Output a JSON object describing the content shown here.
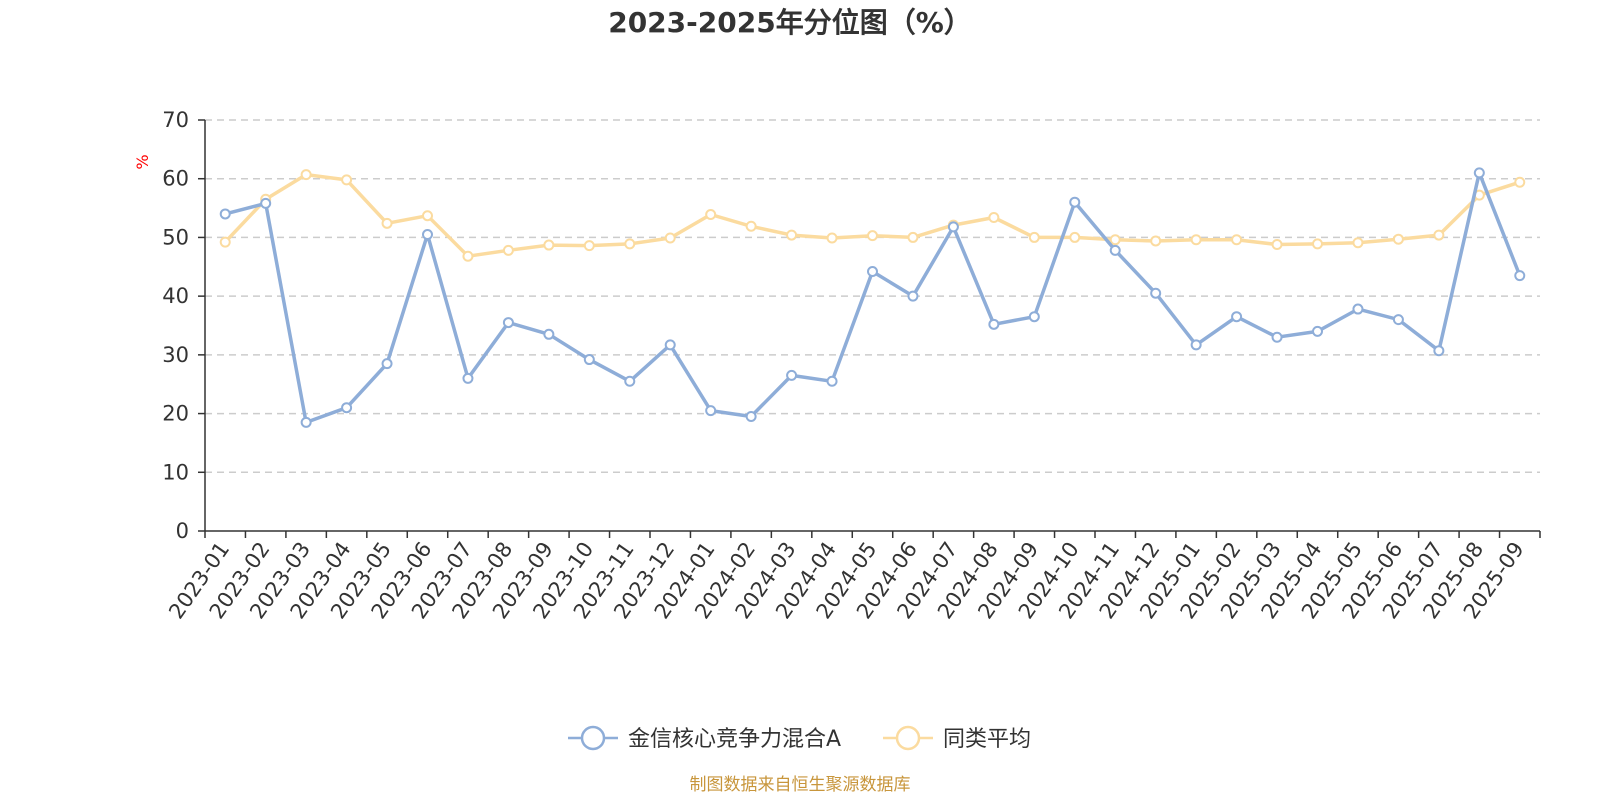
{
  "chart_data": {
    "type": "line",
    "title": "2023-2025年分位图（%）",
    "ylabel": "%",
    "ylim": [
      0,
      70
    ],
    "yticks": [
      0,
      10,
      20,
      30,
      40,
      50,
      60,
      70
    ],
    "grid": true,
    "legend_position": "bottom",
    "categories": [
      "2023-01",
      "2023-02",
      "2023-03",
      "2023-04",
      "2023-05",
      "2023-06",
      "2023-07",
      "2023-08",
      "2023-09",
      "2023-10",
      "2023-11",
      "2023-12",
      "2024-01",
      "2024-02",
      "2024-03",
      "2024-04",
      "2024-05",
      "2024-06",
      "2024-07",
      "2024-08",
      "2024-09",
      "2024-10",
      "2024-11",
      "2024-12",
      "2025-01",
      "2025-02",
      "2025-03",
      "2025-04",
      "2025-05",
      "2025-06",
      "2025-07",
      "2025-08",
      "2025-09"
    ],
    "series": [
      {
        "name": "金信核心竞争力混合A",
        "color": "#8eadd8",
        "values": [
          54.0,
          55.8,
          18.5,
          21.0,
          28.5,
          50.5,
          26.0,
          35.5,
          33.5,
          29.2,
          25.5,
          31.7,
          20.5,
          19.5,
          26.5,
          25.5,
          44.2,
          40.0,
          51.8,
          35.2,
          36.5,
          56.0,
          47.8,
          40.5,
          31.7,
          36.5,
          33.0,
          34.0,
          37.8,
          36.0,
          30.7,
          61.0,
          43.5
        ]
      },
      {
        "name": "同类平均",
        "color": "#fbdb9f",
        "values": [
          49.2,
          56.5,
          60.7,
          59.8,
          52.4,
          53.7,
          46.8,
          47.8,
          48.7,
          48.6,
          48.9,
          49.9,
          53.9,
          51.9,
          50.4,
          49.9,
          50.3,
          50.0,
          52.1,
          53.4,
          50.0,
          50.0,
          49.6,
          49.4,
          49.6,
          49.6,
          48.8,
          48.9,
          49.1,
          49.7,
          50.4,
          57.2,
          59.4
        ]
      }
    ]
  },
  "footer": {
    "source": "制图数据来自恒生聚源数据库",
    "source_color": "#c8963c"
  },
  "colors": {
    "axis": "#333333",
    "grid": "#cccccc",
    "ylabel": "#ff0000"
  }
}
